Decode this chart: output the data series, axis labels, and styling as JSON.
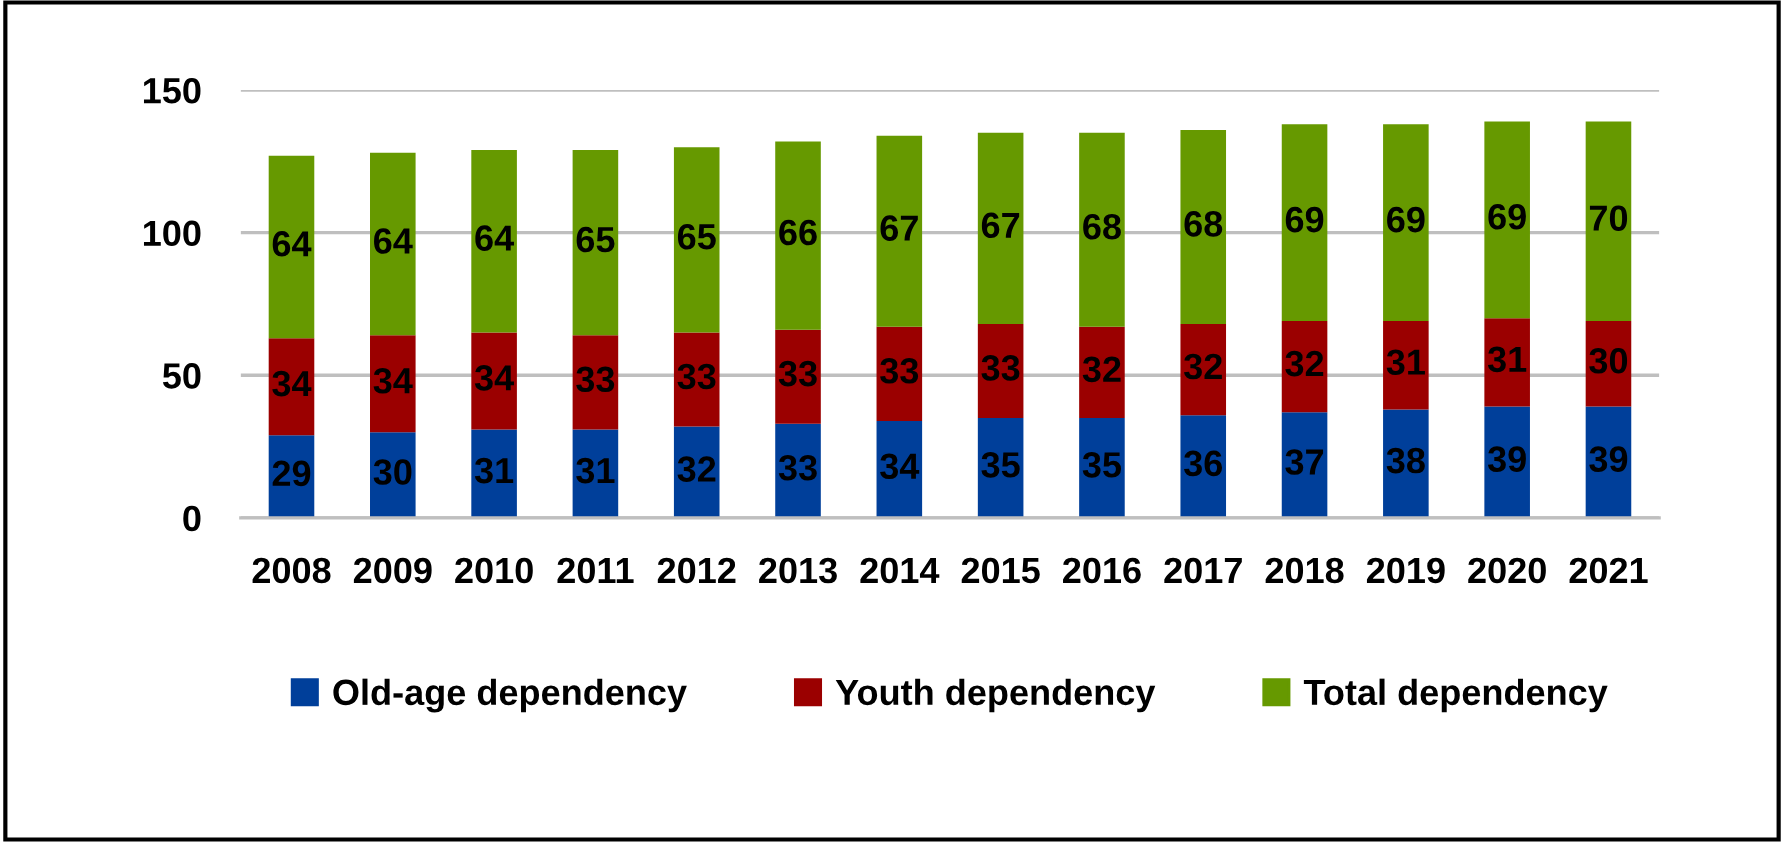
{
  "chart_data": {
    "type": "bar",
    "stacked": true,
    "categories": [
      "2008",
      "2009",
      "2010",
      "2011",
      "2012",
      "2013",
      "2014",
      "2015",
      "2016",
      "2017",
      "2018",
      "2019",
      "2020",
      "2021"
    ],
    "series": [
      {
        "name": "Old-age dependency",
        "color": "#003f9a",
        "values": [
          29,
          30,
          31,
          31,
          32,
          33,
          34,
          35,
          35,
          36,
          37,
          38,
          39,
          39
        ]
      },
      {
        "name": "Youth dependency",
        "color": "#9b0000",
        "values": [
          34,
          34,
          34,
          33,
          33,
          33,
          33,
          33,
          32,
          32,
          32,
          31,
          31,
          30
        ]
      },
      {
        "name": "Total dependency",
        "color": "#669900",
        "values": [
          64,
          64,
          64,
          65,
          65,
          66,
          67,
          67,
          68,
          68,
          69,
          69,
          69,
          70
        ]
      }
    ],
    "ylim": [
      0,
      150
    ],
    "yticks": [
      0,
      50,
      100,
      150
    ],
    "grid": "y",
    "legend": "bottom",
    "data_labels": true
  }
}
